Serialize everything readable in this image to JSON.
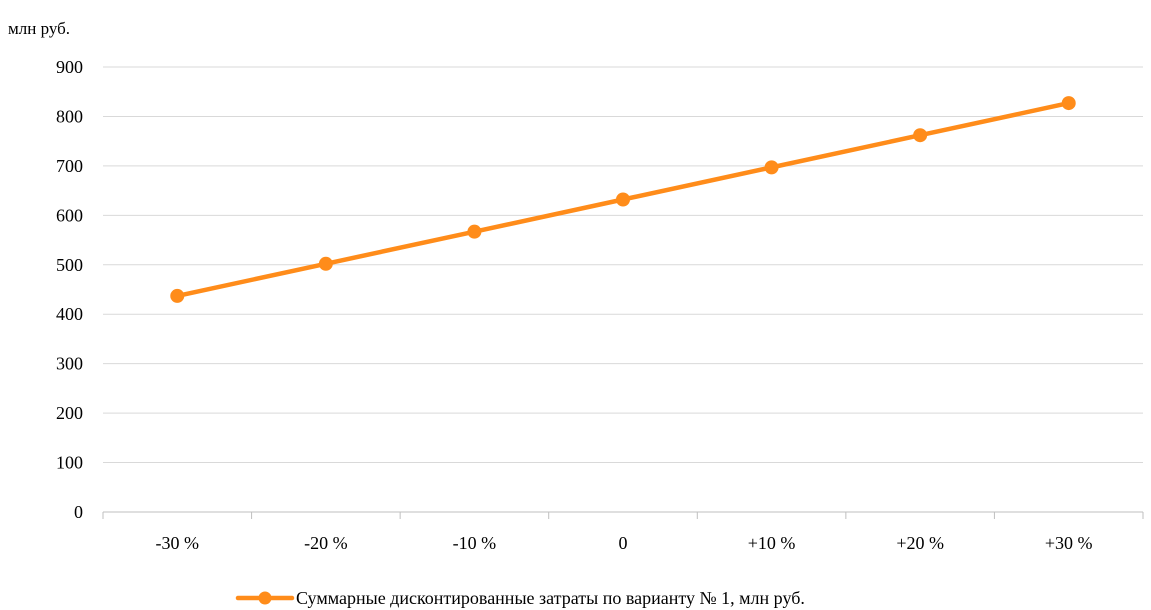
{
  "chart_data": {
    "type": "line",
    "title": "",
    "unit_label": "млн руб.",
    "xlabel": "",
    "ylabel": "",
    "categories": [
      "-30 %",
      "-20 %",
      "-10 %",
      "0",
      "+10 %",
      "+20 %",
      "+30 %"
    ],
    "ylim": [
      0,
      900
    ],
    "yticks": [
      0,
      100,
      200,
      300,
      400,
      500,
      600,
      700,
      800,
      900
    ],
    "grid": true,
    "legend_position": "bottom",
    "series": [
      {
        "name": "Суммарные дисконтированные затраты по варианту № 1, млн руб.",
        "values": [
          437,
          502,
          567,
          632,
          697,
          762,
          827
        ]
      }
    ]
  },
  "colors": {
    "series_line": "#ff8c1a",
    "gridline": "#d9d9d9",
    "axis": "#bfbfbf"
  }
}
